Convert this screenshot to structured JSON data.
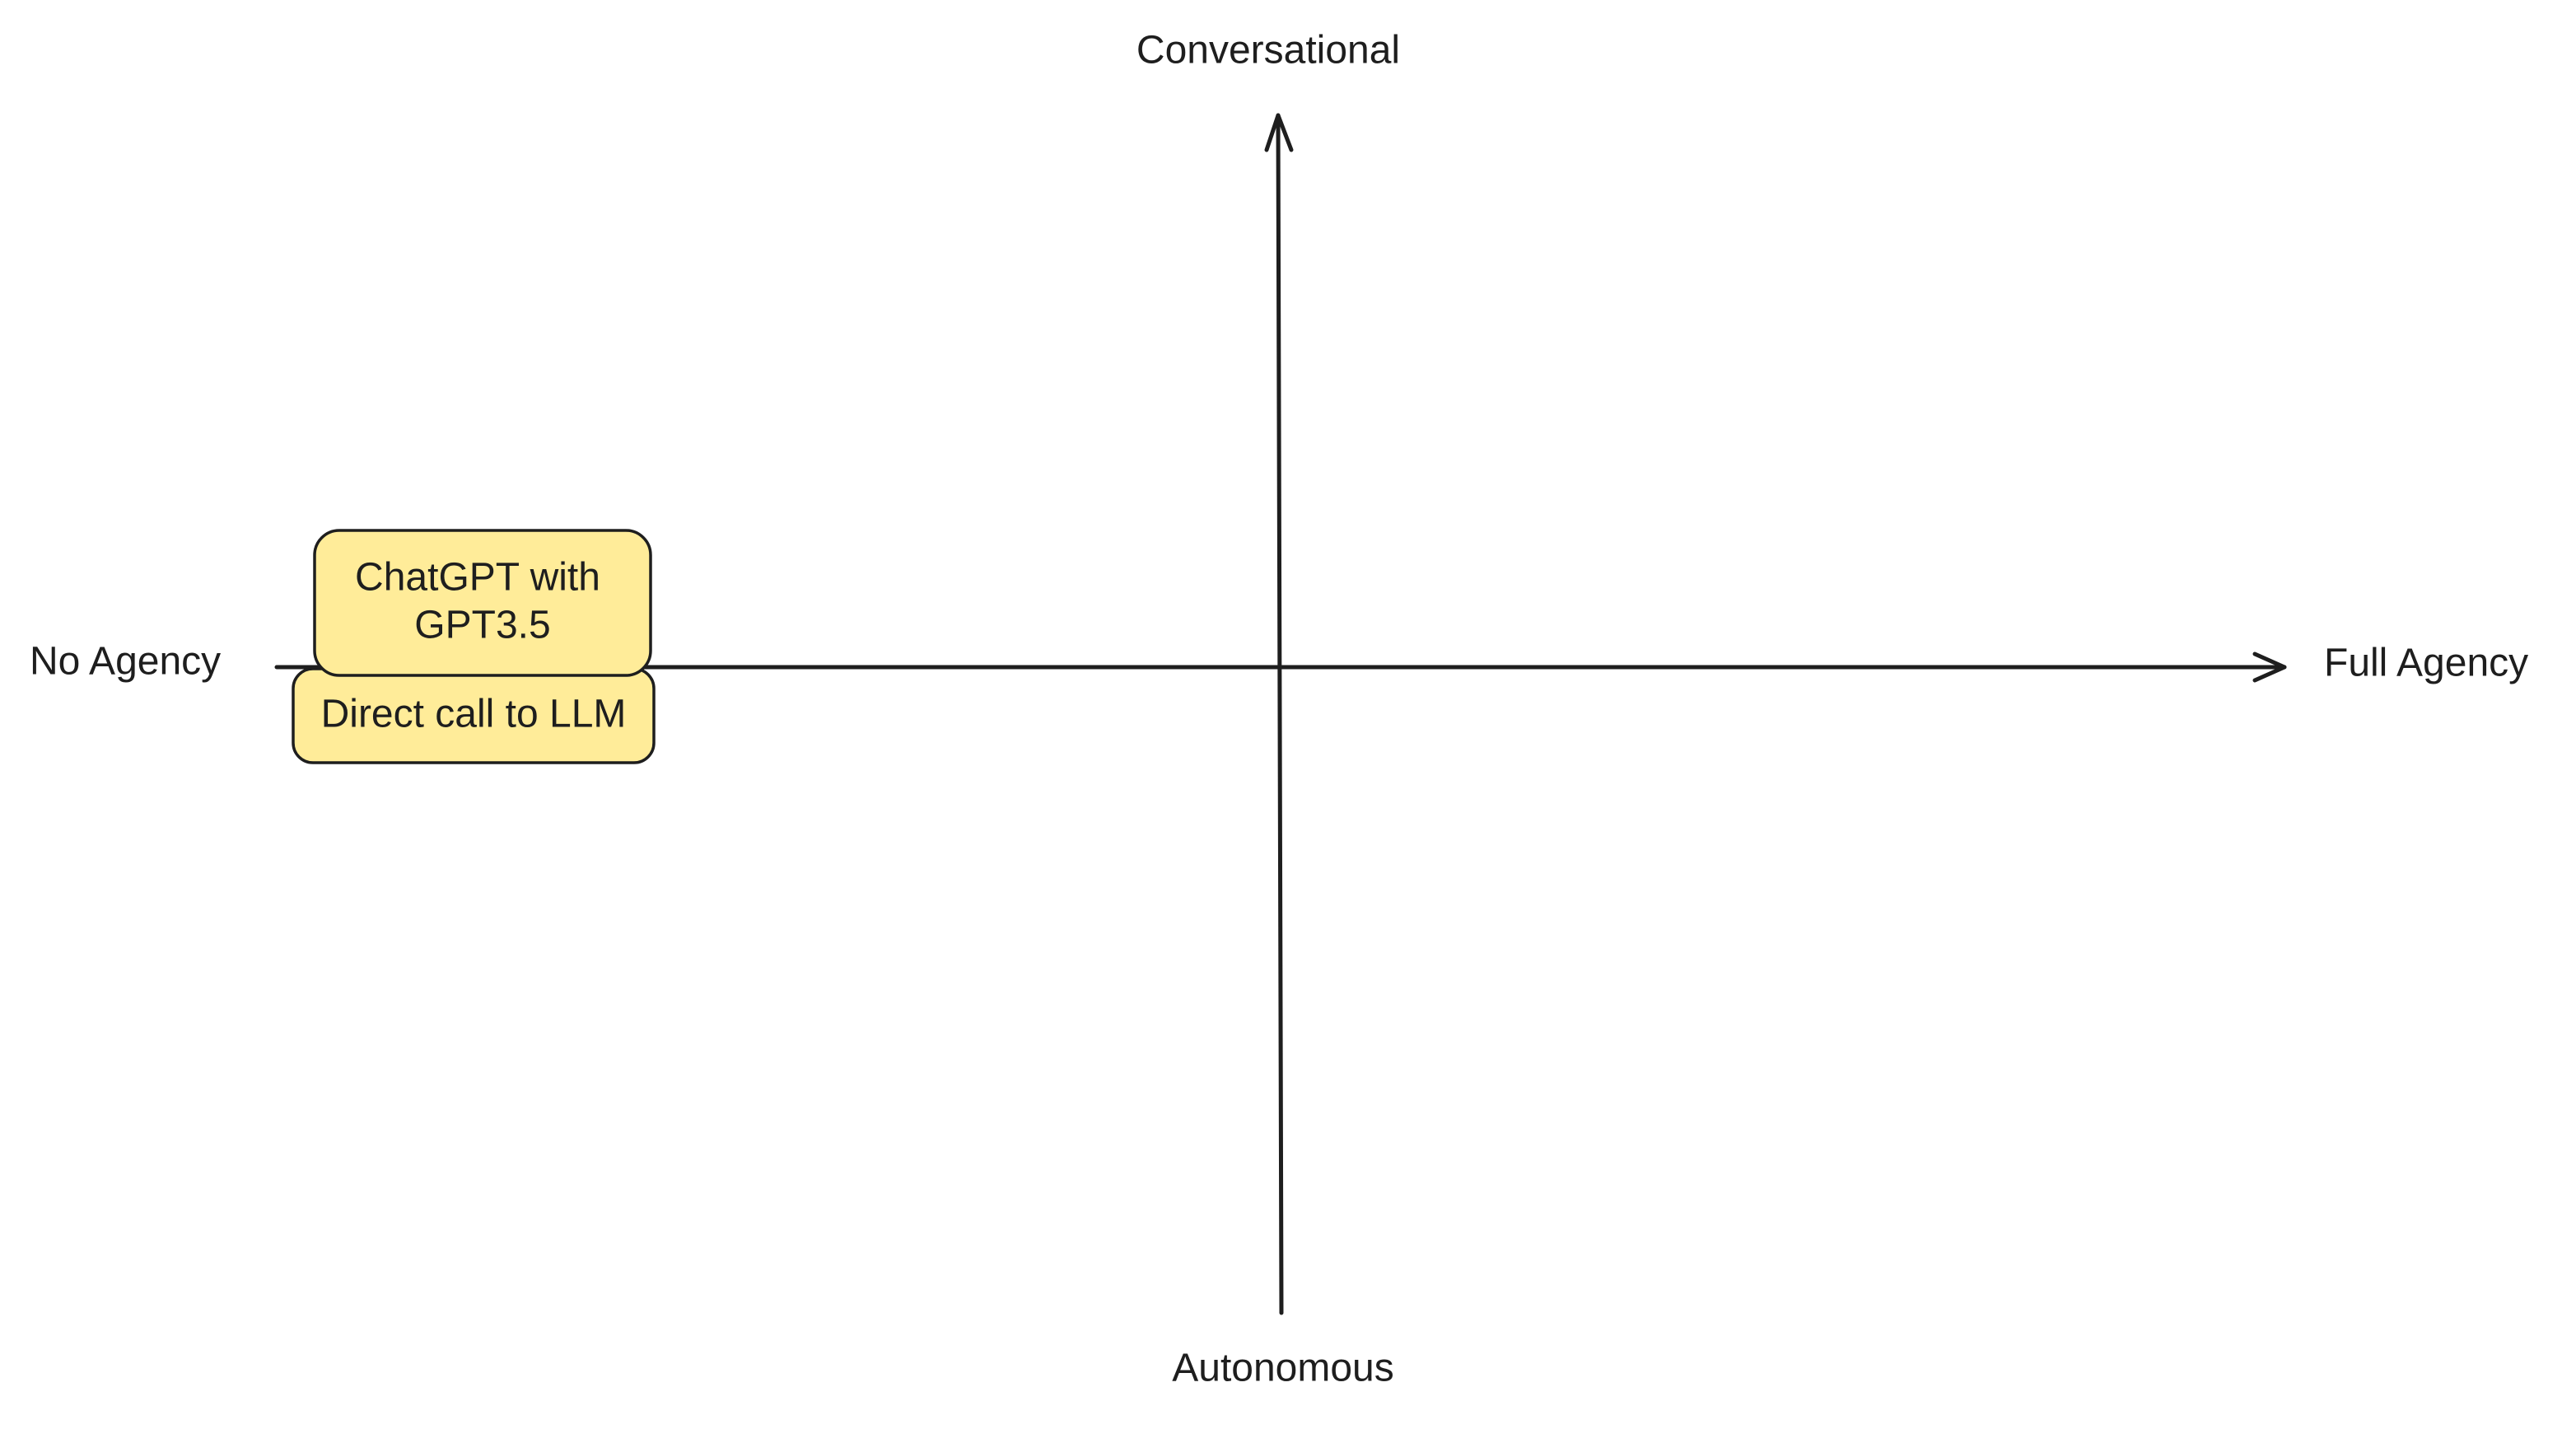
{
  "axes": {
    "top": "Conversational",
    "bottom": "Autonomous",
    "left": "No Agency",
    "right": "Full Agency"
  },
  "nodes": [
    {
      "lines": [
        "ChatGPT with",
        "GPT3.5"
      ]
    },
    {
      "lines": [
        "Direct call to LLM"
      ]
    }
  ]
}
